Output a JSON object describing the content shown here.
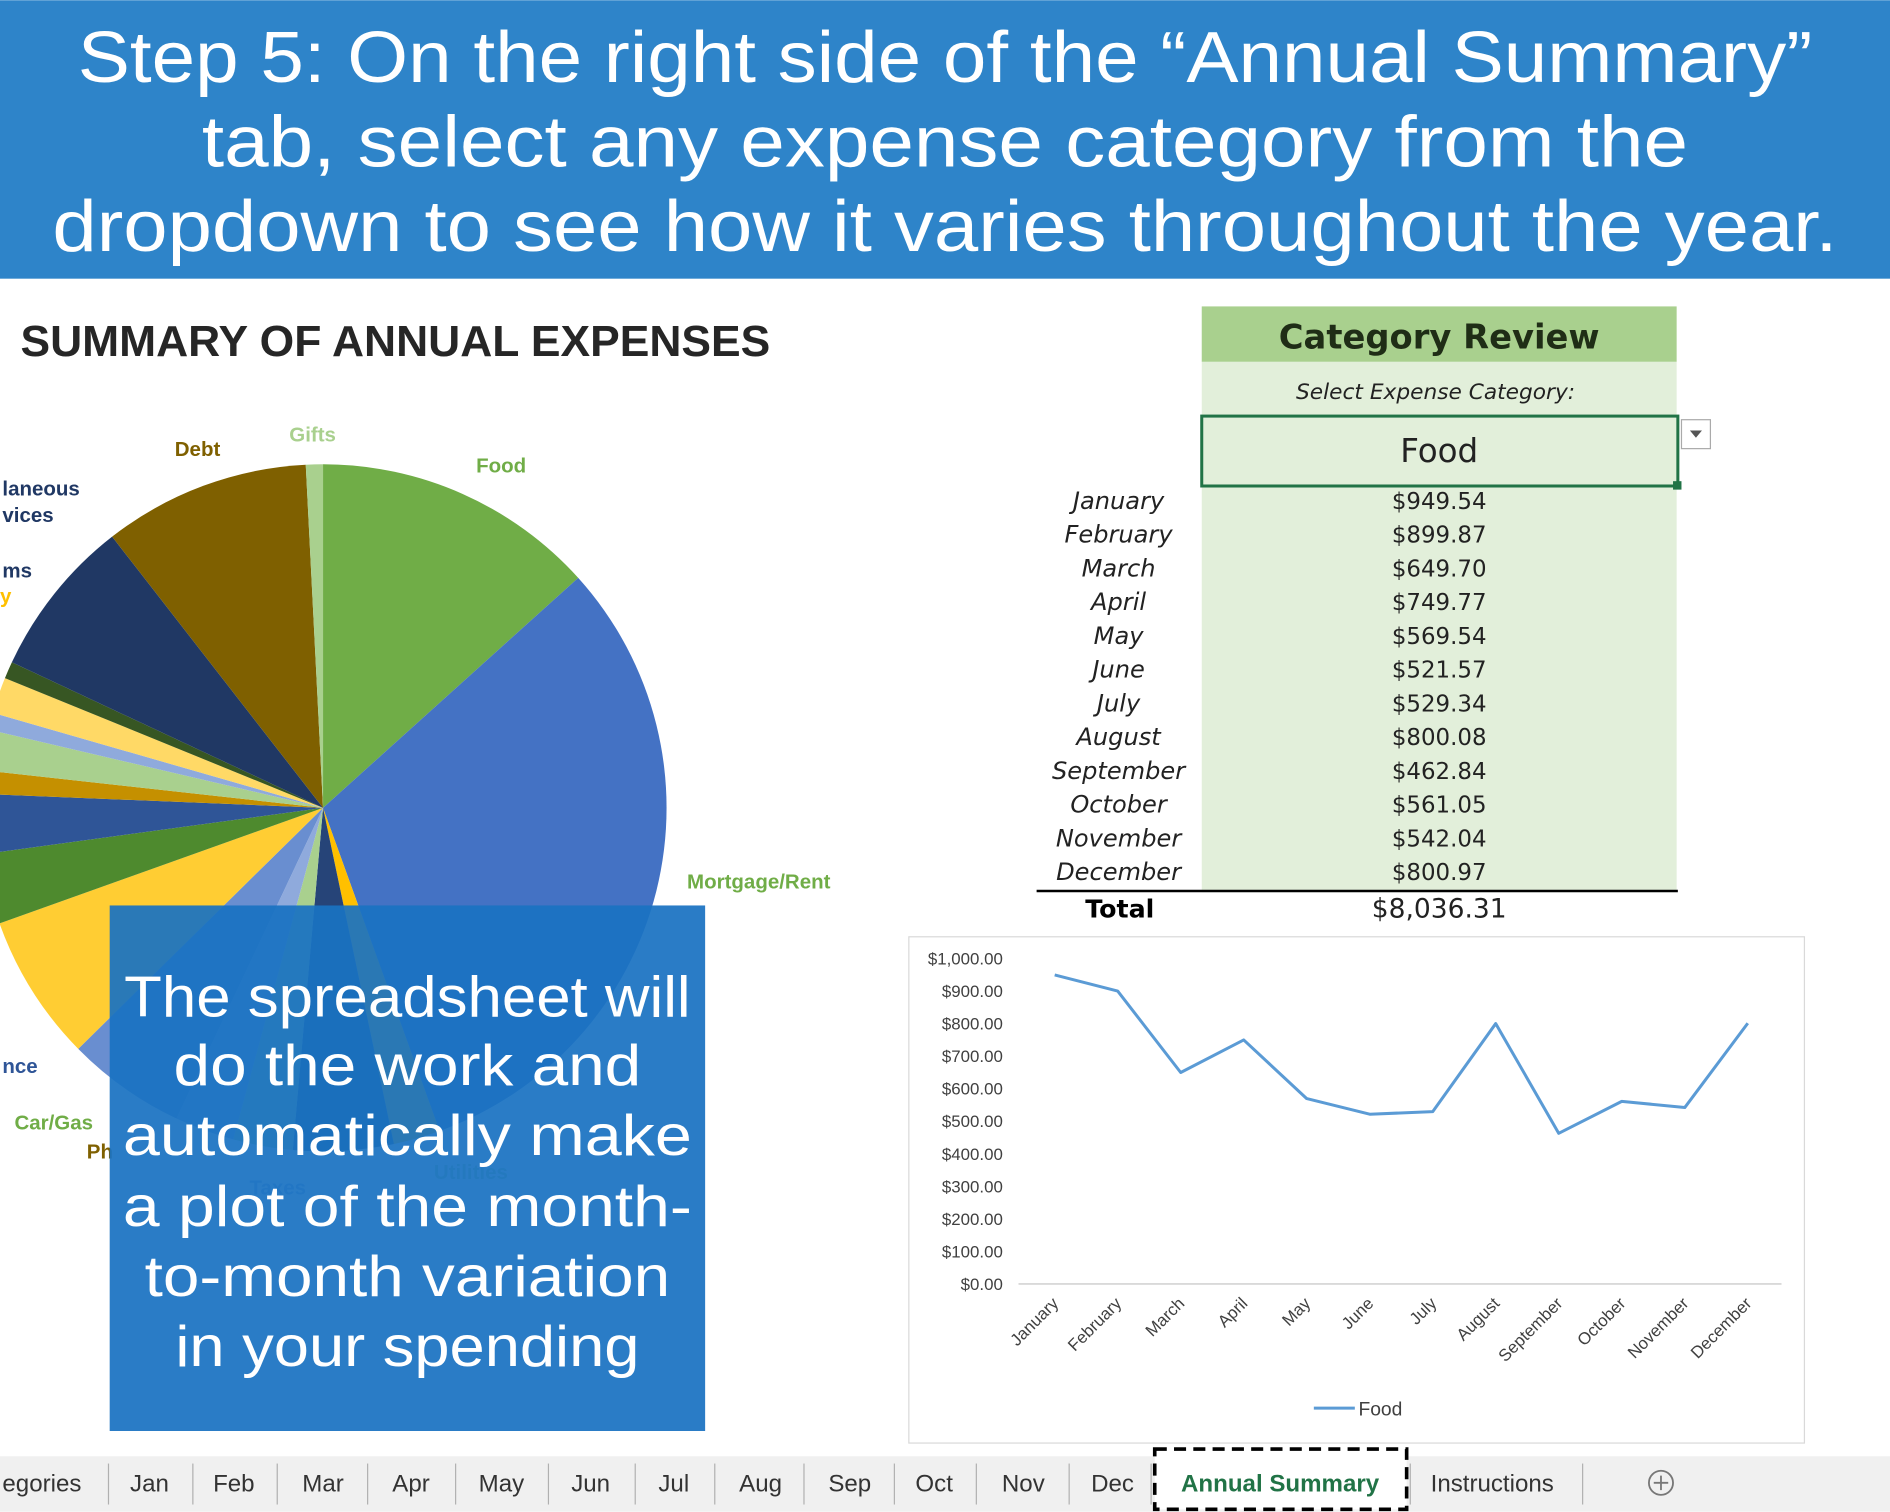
{
  "banner": {
    "lines": [
      "Step 5: On the right side of the “Annual Summary”",
      "tab, select any expense category from the",
      "dropdown to see how it varies throughout the year."
    ]
  },
  "chart_data": [
    {
      "type": "pie",
      "title": "SUMMARY OF ANNUAL EXPENSES",
      "categories": [
        "Food",
        "Mortgage/Rent",
        "Utilities",
        "Taxes",
        "Ph",
        "Car/Gas",
        "nce",
        null,
        null,
        null,
        "y",
        "ms",
        null,
        null,
        null,
        [
          "laneous",
          "vices"
        ],
        "Debt",
        "Gifts"
      ],
      "values": [
        13.3,
        31.1,
        2.2,
        4.7,
        2.8,
        2.8,
        5.6,
        6.9,
        3.3,
        2.8,
        1.1,
        1.9,
        0.8,
        1.7,
        0.8,
        7.5,
        9.7,
        0.8
      ],
      "colors": [
        "#70ad47",
        "#4472c4",
        "#ffc000",
        "#264478",
        "#a9d08e",
        "#8faadc",
        "#698ed0",
        "#ffcd33",
        "#4e8a2e",
        "#2f5597",
        "#c59000",
        "#a9d08e",
        "#8faadc",
        "#ffd966",
        "#375623",
        "#203864",
        "#7f6000",
        "#a9d08e"
      ],
      "label_colors": [
        "#70ad47",
        "#70ad47",
        "#a9d08e",
        "#8faadc",
        "#7f6000",
        "#70ad47",
        "#2f5597",
        null,
        null,
        null,
        "#ffc000",
        "#203864",
        null,
        null,
        null,
        "#203864",
        "#7f6000",
        "#a9d08e"
      ]
    },
    {
      "type": "line",
      "categories": [
        "January",
        "February",
        "March",
        "April",
        "May",
        "June",
        "July",
        "August",
        "September",
        "October",
        "November",
        "December"
      ],
      "series": [
        {
          "name": "Food",
          "color": "#5b9bd5",
          "values": [
            949.54,
            899.87,
            649.7,
            749.77,
            569.54,
            521.57,
            529.34,
            800.08,
            462.84,
            561.05,
            542.04,
            800.97
          ]
        }
      ],
      "ylim": [
        0,
        1000
      ],
      "yticks": [
        {
          "value": 0,
          "label": "$0.00"
        },
        {
          "value": 100,
          "label": "$100.00"
        },
        {
          "value": 200,
          "label": "$200.00"
        },
        {
          "value": 300,
          "label": "$300.00"
        },
        {
          "value": 400,
          "label": "$400.00"
        },
        {
          "value": 500,
          "label": "$500.00"
        },
        {
          "value": 600,
          "label": "$600.00"
        },
        {
          "value": 700,
          "label": "$700.00"
        },
        {
          "value": 800,
          "label": "$800.00"
        },
        {
          "value": 900,
          "label": "$900.00"
        },
        {
          "value": 1000,
          "label": "$1,000.00"
        }
      ],
      "grid": false,
      "legend": "bottom"
    }
  ],
  "category_review": {
    "title": "Category Review",
    "prompt": "Select Expense Category:",
    "selected": "Food",
    "rows": [
      [
        "January",
        "$949.54"
      ],
      [
        "February",
        "$899.87"
      ],
      [
        "March",
        "$649.70"
      ],
      [
        "April",
        "$749.77"
      ],
      [
        "May",
        "$569.54"
      ],
      [
        "June",
        "$521.57"
      ],
      [
        "July",
        "$529.34"
      ],
      [
        "August",
        "$800.08"
      ],
      [
        "September",
        "$462.84"
      ],
      [
        "October",
        "$561.05"
      ],
      [
        "November",
        "$542.04"
      ],
      [
        "December",
        "$800.97"
      ]
    ],
    "total": [
      "Total",
      "$8,036.31"
    ]
  },
  "callout": {
    "lines": [
      "The spreadsheet will",
      "do the work and",
      "automatically make",
      "a plot of the month-",
      "to-month variation",
      "in your spending"
    ]
  },
  "sheet_tabs": [
    {
      "label": "egories"
    },
    {
      "label": "Jan"
    },
    {
      "label": "Feb"
    },
    {
      "label": "Mar"
    },
    {
      "label": "Apr"
    },
    {
      "label": "May"
    },
    {
      "label": "Jun"
    },
    {
      "label": "Jul"
    },
    {
      "label": "Aug"
    },
    {
      "label": "Sep"
    },
    {
      "label": "Oct"
    },
    {
      "label": "Nov"
    },
    {
      "label": "Dec"
    },
    {
      "label": "Annual Summary",
      "active": true
    },
    {
      "label": "Instructions"
    }
  ]
}
